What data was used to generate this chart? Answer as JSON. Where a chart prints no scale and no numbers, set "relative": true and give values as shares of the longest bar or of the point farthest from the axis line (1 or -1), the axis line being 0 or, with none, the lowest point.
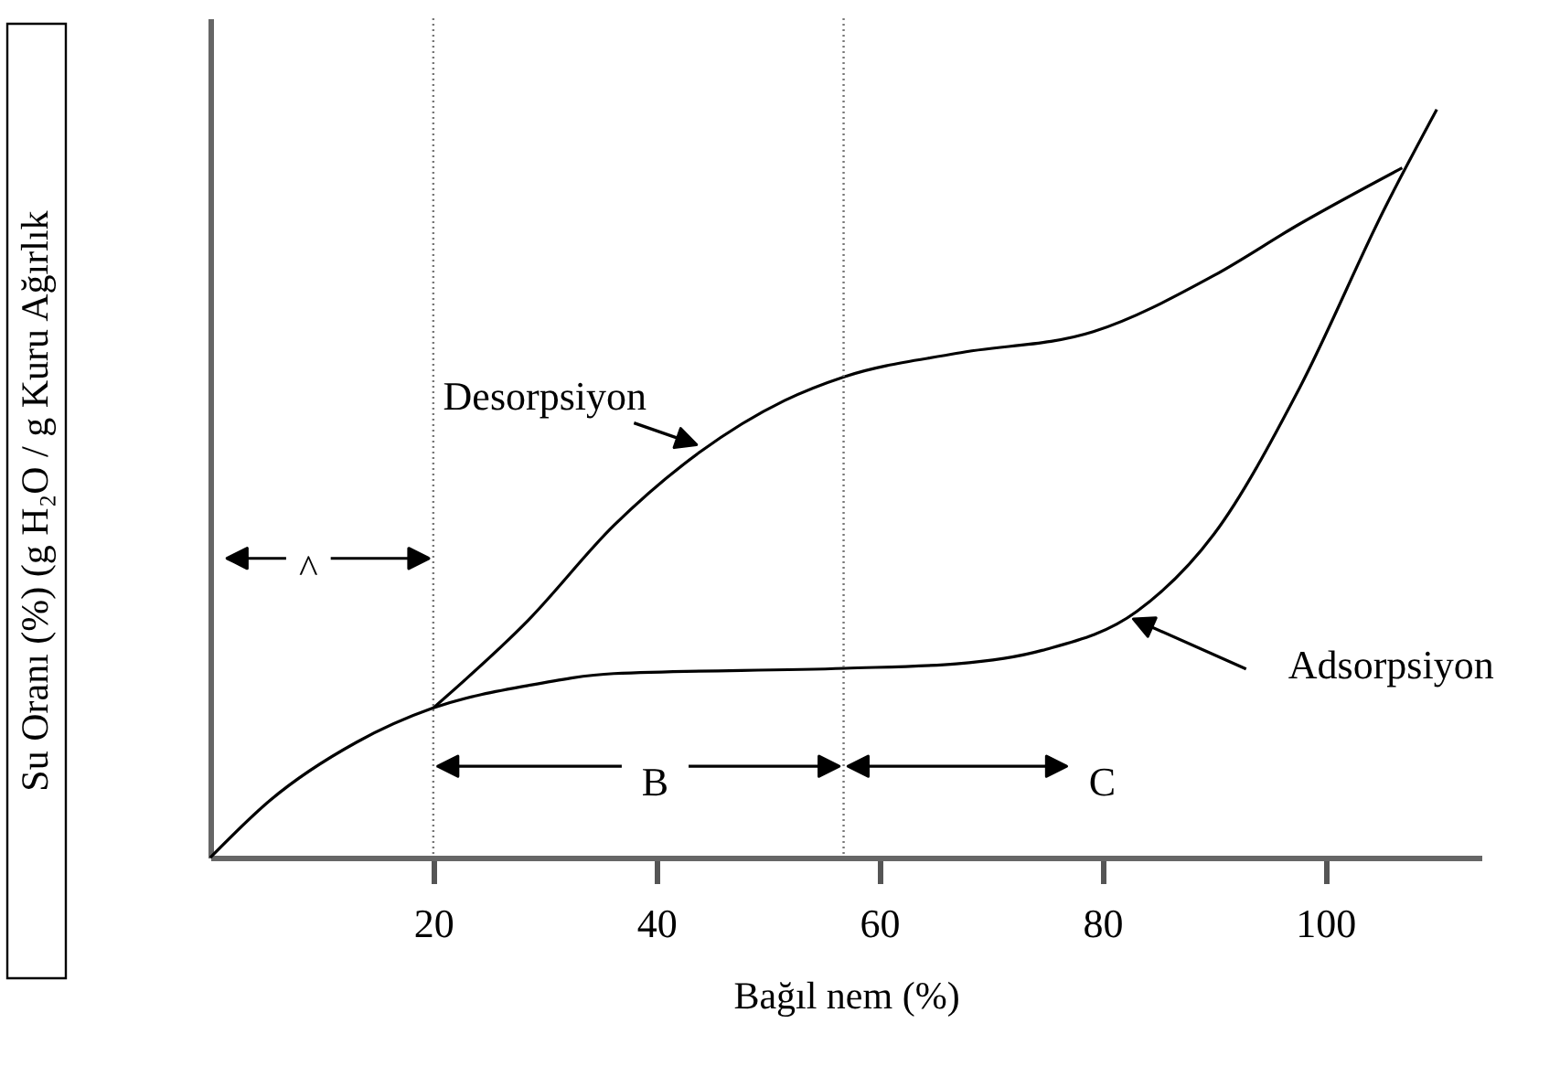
{
  "chart_data": {
    "type": "line",
    "relative": true,
    "xlabel": "Bağıl nem (%)",
    "ylabel": "Su Oranı (%) (g H₂O / g Kuru Ağırlık",
    "xlim": [
      0,
      114
    ],
    "xticks": [
      20,
      40,
      60,
      80,
      100
    ],
    "grid": false,
    "marker": "none",
    "line_style": "solid",
    "tick_labels": "x",
    "series": [
      {
        "color": "#000000",
        "x": [
          20,
          28.5,
          36.2,
          43.9,
          51.5,
          56.9,
          66.9,
          79.2,
          90,
          97.7,
          106.9
        ],
        "values": [
          0.2,
          0.317,
          0.444,
          0.542,
          0.611,
          0.643,
          0.674,
          0.703,
          0.778,
          0.847,
          0.922
        ]
      },
      {
        "color": "#000000",
        "x": [
          0,
          5.4,
          13.1,
          20,
          28.5,
          36.2,
          56.9,
          66.9,
          74.6,
          83.1,
          90,
          97.7,
          105.4,
          110
        ],
        "values": [
          0,
          0.077,
          0.154,
          0.2,
          0.23,
          0.246,
          0.253,
          0.259,
          0.277,
          0.329,
          0.432,
          0.628,
          0.87,
          1.0
        ]
      }
    ],
    "ref_lines": [
      {
        "axis": "x",
        "value": 20,
        "line_style": "dotted"
      },
      {
        "axis": "x",
        "value": 56.8,
        "line_style": "dotted"
      }
    ],
    "annotations": [
      "Desorpsiyon",
      "Adsorpsiyon",
      "^",
      "B",
      "C"
    ]
  }
}
